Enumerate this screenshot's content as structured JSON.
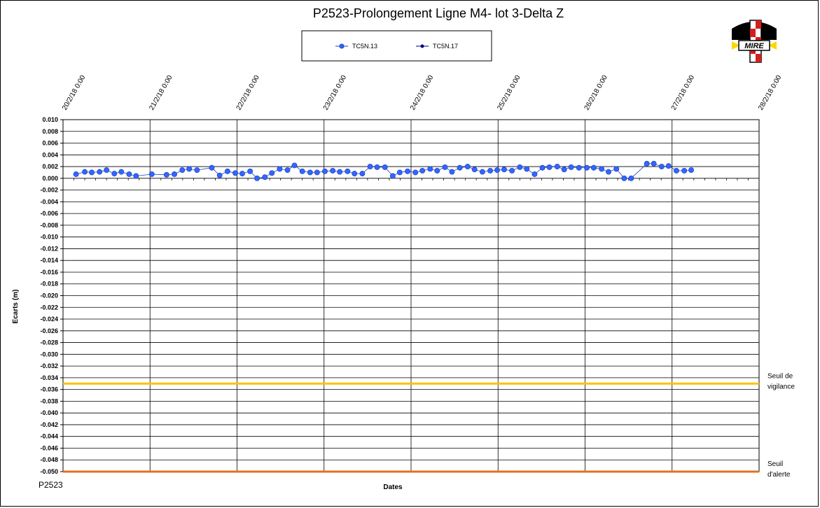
{
  "footer_code": "P2523",
  "colors": {
    "series_fill": "#3366ff",
    "series_line": "#1f3fbf",
    "series2": "#000080",
    "vigilance": "#ffc000",
    "alerte": "#e07020",
    "grid": "#000000"
  },
  "logo": {
    "text": "MIRE",
    "icon": "mire-logo-icon"
  },
  "chart_data": {
    "type": "line",
    "title": "P2523-Prolongement  Ligne  M4-  lot 3-Delta Z",
    "xlabel": "Dates",
    "ylabel": "Ecarts (m)",
    "ylim": [
      -0.05,
      0.01
    ],
    "ytick_step": 0.002,
    "xlim": [
      "2018-02-20",
      "2018-02-28"
    ],
    "x_tick_labels": [
      "20/2/18 0:00",
      "21/2/18 0:00",
      "22/2/18 0:00",
      "23/2/18 0:00",
      "24/2/18 0:00",
      "25/2/18 0:00",
      "26/2/18 0:00",
      "27/2/18 0:00",
      "28/2/18 0:00"
    ],
    "grid": true,
    "legend_placement": "top-center",
    "thresholds": [
      {
        "name": "Seuil de vigilance",
        "line1": "Seuil de",
        "line2": "vigilance",
        "value": -0.035
      },
      {
        "name": "Seuil d'alerte",
        "line1": "Seuil",
        "line2": "d'alerte",
        "value": -0.05
      }
    ],
    "series": [
      {
        "name": "TC5N.13",
        "x": [
          0.15,
          0.25,
          0.33,
          0.42,
          0.5,
          0.59,
          0.67,
          0.76,
          0.84,
          1.02,
          1.19,
          1.28,
          1.37,
          1.45,
          1.54,
          1.71,
          1.8,
          1.89,
          1.98,
          2.06,
          2.15,
          2.23,
          2.32,
          2.4,
          2.49,
          2.58,
          2.66,
          2.75,
          2.84,
          2.92,
          3.01,
          3.1,
          3.18,
          3.27,
          3.35,
          3.44,
          3.53,
          3.61,
          3.7,
          3.79,
          3.87,
          3.96,
          4.05,
          4.13,
          4.22,
          4.3,
          4.39,
          4.47,
          4.56,
          4.65,
          4.73,
          4.82,
          4.91,
          4.99,
          5.07,
          5.16,
          5.25,
          5.33,
          5.42,
          5.51,
          5.59,
          5.68,
          5.76,
          5.84,
          5.93,
          6.02,
          6.1,
          6.19,
          6.27,
          6.36,
          6.45,
          6.53,
          6.71,
          6.79,
          6.88,
          6.96,
          7.05,
          7.14,
          7.22
        ],
        "values": [
          0.0007,
          0.0011,
          0.001,
          0.0011,
          0.0014,
          0.0008,
          0.0011,
          0.0007,
          0.0004,
          0.0007,
          0.0006,
          0.0007,
          0.0014,
          0.0016,
          0.0014,
          0.0018,
          0.0005,
          0.0012,
          0.0009,
          0.0008,
          0.0012,
          0.0,
          0.0002,
          0.0009,
          0.0016,
          0.0014,
          0.0022,
          0.0012,
          0.001,
          0.001,
          0.0012,
          0.0013,
          0.0011,
          0.0012,
          0.0008,
          0.0008,
          0.002,
          0.0019,
          0.0019,
          0.0004,
          0.001,
          0.0012,
          0.001,
          0.0013,
          0.0016,
          0.0013,
          0.0019,
          0.0011,
          0.0018,
          0.002,
          0.0015,
          0.0011,
          0.0013,
          0.0014,
          0.0015,
          0.0013,
          0.0019,
          0.0016,
          0.0007,
          0.0018,
          0.0019,
          0.002,
          0.0015,
          0.0019,
          0.0018,
          0.0018,
          0.0018,
          0.0016,
          0.0011,
          0.0016,
          0.0,
          0.0,
          0.0025,
          0.0025,
          0.002,
          0.0021,
          0.0013,
          0.0013,
          0.0014
        ]
      },
      {
        "name": "TC5N.17",
        "x": [],
        "values": []
      }
    ]
  }
}
